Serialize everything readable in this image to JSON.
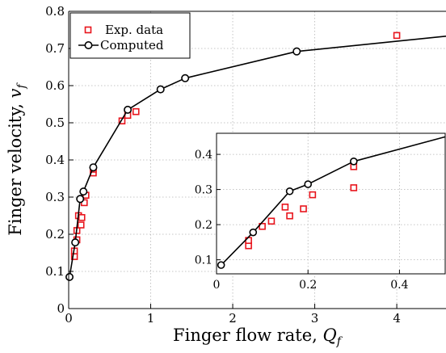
{
  "chart_data": [
    {
      "type": "scatter",
      "role": "main",
      "xlabel": "Finger flow rate, Q_f",
      "ylabel": "Finger velocity, v_f",
      "xlim": [
        0,
        4.6
      ],
      "ylim": [
        0,
        0.8
      ],
      "xticks": [
        0,
        1,
        2,
        3,
        4
      ],
      "yticks": [
        0,
        0.1,
        0.2,
        0.3,
        0.4,
        0.5,
        0.6,
        0.7,
        0.8
      ],
      "xtick_labels": [
        "0",
        "1",
        "2",
        "3",
        "4"
      ],
      "ytick_labels": [
        "0",
        "0.1",
        "0.2",
        "0.3",
        "0.4",
        "0.5",
        "0.6",
        "0.7",
        "0.8"
      ],
      "grid": true,
      "legend_placement": "top-left",
      "series": [
        {
          "name": "Exp. data",
          "style": "markers",
          "marker": "square",
          "color": "#e8141c",
          "x": [
            0.07,
            0.07,
            0.1,
            0.1,
            0.12,
            0.15,
            0.16,
            0.19,
            0.21,
            0.3,
            0.3,
            0.65,
            0.72,
            0.82,
            4.0
          ],
          "y": [
            0.14,
            0.155,
            0.185,
            0.21,
            0.25,
            0.225,
            0.245,
            0.285,
            0.305,
            0.365,
            0.375,
            0.505,
            0.52,
            0.53,
            0.735
          ]
        },
        {
          "name": "Computed",
          "style": "line-markers",
          "marker": "circle",
          "color": "#000000",
          "x": [
            0.01,
            0.08,
            0.14,
            0.18,
            0.3,
            0.72,
            1.12,
            1.42,
            2.78,
            4.6
          ],
          "y": [
            0.085,
            0.178,
            0.295,
            0.315,
            0.38,
            0.535,
            0.59,
            0.62,
            0.692,
            0.733
          ]
        }
      ]
    },
    {
      "type": "scatter",
      "role": "inset",
      "xlim": [
        0,
        0.5
      ],
      "ylim": [
        0.06,
        0.46
      ],
      "xticks": [
        0,
        0.2,
        0.4
      ],
      "yticks": [
        0.1,
        0.2,
        0.3,
        0.4
      ],
      "xtick_labels": [
        "0",
        "0.2",
        "0.4"
      ],
      "ytick_labels": [
        "0.1",
        "0.2",
        "0.3",
        "0.4"
      ],
      "grid": true,
      "series": [
        {
          "name": "Exp. data",
          "style": "markers",
          "marker": "square",
          "color": "#e8141c",
          "x": [
            0.07,
            0.07,
            0.1,
            0.12,
            0.15,
            0.16,
            0.19,
            0.21,
            0.3,
            0.3
          ],
          "y": [
            0.14,
            0.155,
            0.195,
            0.21,
            0.25,
            0.225,
            0.245,
            0.285,
            0.305,
            0.365
          ]
        },
        {
          "name": "Computed",
          "style": "line-markers",
          "marker": "circle",
          "color": "#000000",
          "x": [
            0.01,
            0.08,
            0.16,
            0.2,
            0.3,
            0.5
          ],
          "y": [
            0.085,
            0.178,
            0.295,
            0.315,
            0.38,
            0.45
          ]
        }
      ]
    }
  ],
  "axis_titles": {
    "x_main": "Finger flow rate, ",
    "x_symbol": "Q",
    "x_subscript": "f",
    "y_main": "Finger velocity, ",
    "y_symbol": "v",
    "y_subscript": "f"
  },
  "legend": {
    "items": [
      {
        "label": "Exp. data"
      },
      {
        "label": "Computed"
      }
    ]
  }
}
